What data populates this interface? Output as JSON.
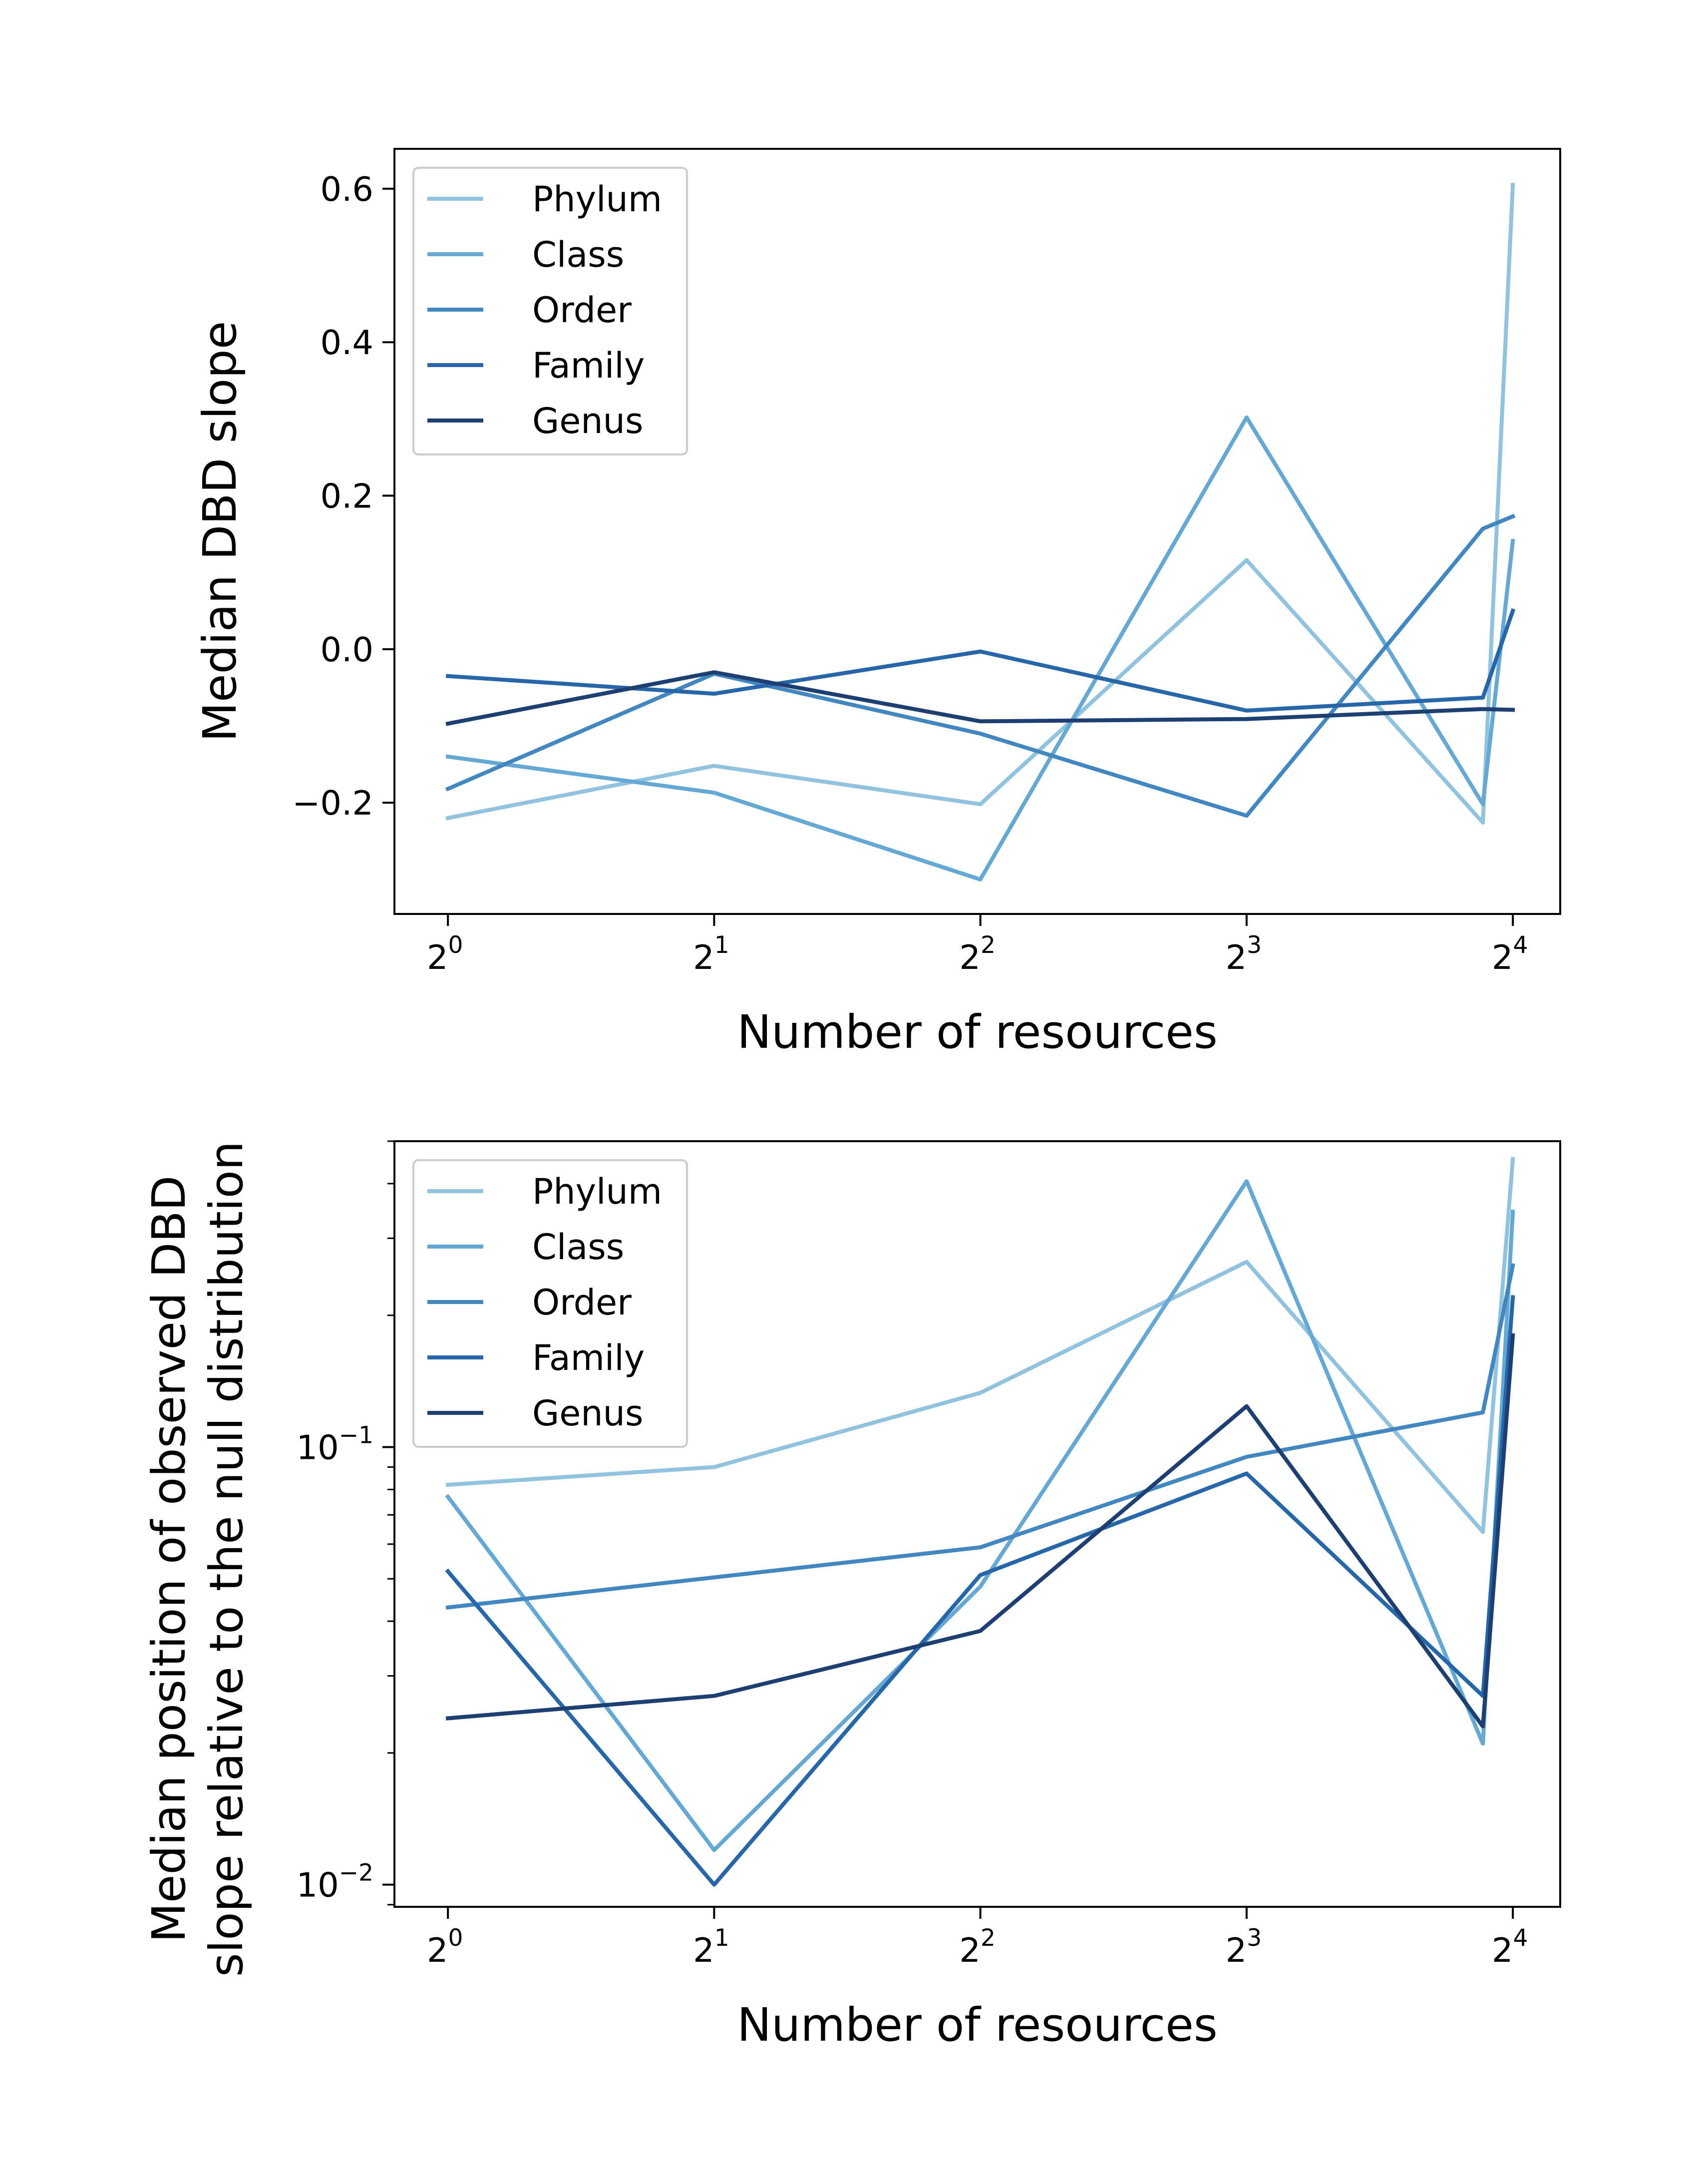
{
  "chart_data": [
    {
      "type": "line",
      "xlabel": "Number of resources",
      "ylabel": "Median DBD slope",
      "xscale": "log2",
      "yscale": "linear",
      "xlim": [
        0.87,
        18.1
      ],
      "ylim": [
        -0.345,
        0.652
      ],
      "xticks": [
        {
          "base": "2",
          "exp": "0",
          "value": 1
        },
        {
          "base": "2",
          "exp": "1",
          "value": 2
        },
        {
          "base": "2",
          "exp": "2",
          "value": 4
        },
        {
          "base": "2",
          "exp": "3",
          "value": 8
        },
        {
          "base": "2",
          "exp": "4",
          "value": 16
        }
      ],
      "yticks": [
        {
          "label": "0.6",
          "value": 0.6
        },
        {
          "label": "0.4",
          "value": 0.4
        },
        {
          "label": "0.2",
          "value": 0.2
        },
        {
          "label": "0.0",
          "value": 0.0
        },
        {
          "label": "−0.2",
          "value": -0.2
        }
      ],
      "legend_position": "upper-left",
      "x": [
        1,
        2,
        4,
        8,
        14.8,
        16
      ],
      "series": [
        {
          "name": "Phylum",
          "color": "#92c3de",
          "values": [
            -0.22,
            -0.152,
            -0.202,
            0.116,
            -0.226,
            0.605
          ]
        },
        {
          "name": "Class",
          "color": "#65a8d4",
          "values": [
            -0.14,
            -0.187,
            -0.3,
            0.302,
            -0.202,
            0.141
          ]
        },
        {
          "name": "Order",
          "color": "#4287c0",
          "values": [
            -0.182,
            -0.032,
            -0.11,
            -0.217,
            0.157,
            0.173
          ]
        },
        {
          "name": "Family",
          "color": "#2766a8",
          "values": [
            -0.035,
            -0.058,
            -0.003,
            -0.08,
            -0.063,
            0.05
          ]
        },
        {
          "name": "Genus",
          "color": "#1d3f72",
          "values": [
            -0.097,
            -0.03,
            -0.094,
            -0.091,
            -0.078,
            -0.079
          ]
        }
      ]
    },
    {
      "type": "line",
      "xlabel": "Number of resources",
      "ylabel": "Median position of observed DBD",
      "ylabel2": "slope relative to the null distribution",
      "xscale": "log2",
      "yscale": "log",
      "xlim": [
        0.87,
        18.1
      ],
      "ylim": [
        0.0089,
        0.5
      ],
      "xticks": [
        {
          "base": "2",
          "exp": "0",
          "value": 1
        },
        {
          "base": "2",
          "exp": "1",
          "value": 2
        },
        {
          "base": "2",
          "exp": "2",
          "value": 4
        },
        {
          "base": "2",
          "exp": "3",
          "value": 8
        },
        {
          "base": "2",
          "exp": "4",
          "value": 16
        }
      ],
      "yticks": [
        {
          "base": "10",
          "exp": "−1",
          "value": 0.1
        },
        {
          "base": "10",
          "exp": "−2",
          "value": 0.01
        }
      ],
      "legend_position": "upper-left",
      "x": [
        1,
        2,
        4,
        8,
        14.8,
        16
      ],
      "series": [
        {
          "name": "Phylum",
          "color": "#92c3de",
          "values": [
            0.082,
            0.09,
            0.133,
            0.265,
            0.064,
            0.455
          ]
        },
        {
          "name": "Class",
          "color": "#65a8d4",
          "values": [
            0.077,
            0.012,
            0.048,
            0.405,
            0.021,
            0.345
          ]
        },
        {
          "name": "Order",
          "color": "#4287c0",
          "values": [
            0.043,
            null,
            0.059,
            0.095,
            0.12,
            0.26
          ]
        },
        {
          "name": "Family",
          "color": "#2766a8",
          "values": [
            0.052,
            0.01,
            0.051,
            0.087,
            0.027,
            0.22
          ]
        },
        {
          "name": "Genus",
          "color": "#1d3f72",
          "values": [
            0.024,
            0.027,
            0.038,
            0.124,
            0.023,
            0.18
          ]
        }
      ]
    }
  ]
}
